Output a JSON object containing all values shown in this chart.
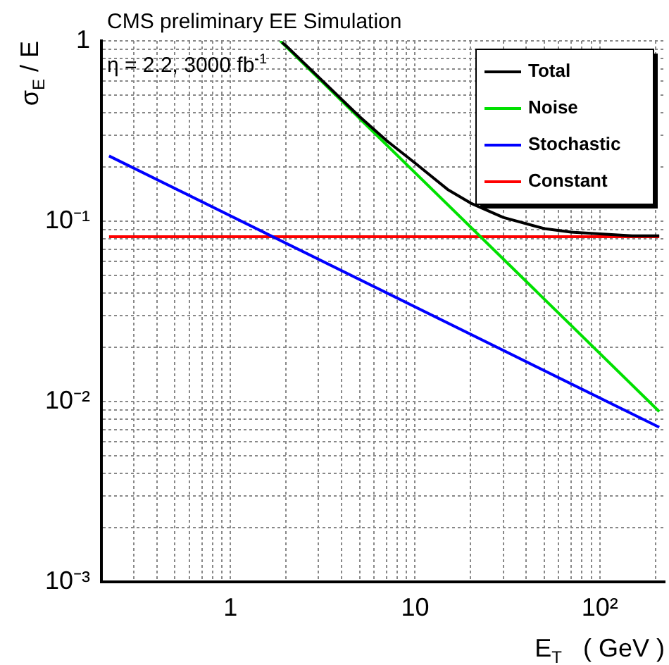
{
  "chart_data": {
    "type": "line",
    "title": "CMS preliminary EE Simulation",
    "xlabel": "E$_{T}$   ( GeV )",
    "ylabel": "σ$_{E}$ / E",
    "annotations": [
      "η = 2.2, 3000 fb$^{-1}$"
    ],
    "log": "xy",
    "grid": true,
    "legend": "top right",
    "marker": "none",
    "line_style": "solid",
    "xlim": [
      0.2,
      225
    ],
    "ylim": [
      0.001,
      1
    ],
    "xticks": [
      {
        "value": 0.3,
        "label": null
      },
      {
        "value": 0.4,
        "label": null
      },
      {
        "value": 0.5,
        "label": null
      },
      {
        "value": 0.6,
        "label": null
      },
      {
        "value": 0.7,
        "label": null
      },
      {
        "value": 0.8,
        "label": null
      },
      {
        "value": 0.9,
        "label": null
      },
      1,
      {
        "value": 2,
        "label": null
      },
      {
        "value": 3,
        "label": null
      },
      {
        "value": 4,
        "label": null
      },
      {
        "value": 5,
        "label": null
      },
      {
        "value": 6,
        "label": null
      },
      {
        "value": 7,
        "label": null
      },
      {
        "value": 8,
        "label": null
      },
      {
        "value": 9,
        "label": null
      },
      10,
      {
        "value": 20,
        "label": null
      },
      {
        "value": 30,
        "label": null
      },
      {
        "value": 40,
        "label": null
      },
      {
        "value": 50,
        "label": null
      },
      {
        "value": 60,
        "label": null
      },
      {
        "value": 70,
        "label": null
      },
      {
        "value": 80,
        "label": null
      },
      {
        "value": 90,
        "label": null
      },
      {
        "value": 100,
        "label": "10²"
      },
      {
        "value": 200,
        "label": null
      }
    ],
    "yticks": [
      {
        "value": 0.001,
        "label": "10⁻³"
      },
      {
        "value": 0.002,
        "label": null
      },
      {
        "value": 0.003,
        "label": null
      },
      {
        "value": 0.004,
        "label": null
      },
      {
        "value": 0.005,
        "label": null
      },
      {
        "value": 0.006,
        "label": null
      },
      {
        "value": 0.007,
        "label": null
      },
      {
        "value": 0.008,
        "label": null
      },
      {
        "value": 0.009,
        "label": null
      },
      {
        "value": 0.01,
        "label": "10⁻²"
      },
      {
        "value": 0.02,
        "label": null
      },
      {
        "value": 0.03,
        "label": null
      },
      {
        "value": 0.04,
        "label": null
      },
      {
        "value": 0.05,
        "label": null
      },
      {
        "value": 0.06,
        "label": null
      },
      {
        "value": 0.07,
        "label": null
      },
      {
        "value": 0.08,
        "label": null
      },
      {
        "value": 0.09,
        "label": null
      },
      {
        "value": 0.1,
        "label": "10⁻¹"
      },
      {
        "value": 0.2,
        "label": null
      },
      {
        "value": 0.3,
        "label": null
      },
      {
        "value": 0.4,
        "label": null
      },
      {
        "value": 0.5,
        "label": null
      },
      {
        "value": 0.6,
        "label": null
      },
      {
        "value": 0.7,
        "label": null
      },
      {
        "value": 0.8,
        "label": null
      },
      {
        "value": 0.9,
        "label": null
      },
      1
    ],
    "series": [
      {
        "name": "Total",
        "color": "#000000",
        "x": [
          1.9,
          2,
          3,
          5,
          7,
          10,
          15,
          20,
          30,
          50,
          70,
          100,
          150,
          210
        ],
        "values": [
          0.98,
          0.94,
          0.63,
          0.38,
          0.28,
          0.21,
          0.15,
          0.126,
          0.105,
          0.091,
          0.087,
          0.085,
          0.083,
          0.083
        ]
      },
      {
        "name": "Noise",
        "color": "#00e000",
        "x": [
          1.86,
          210
        ],
        "values": [
          1,
          0.0088
        ]
      },
      {
        "name": "Stochastic",
        "color": "#0000ff",
        "x": [
          0.22,
          210
        ],
        "values": [
          0.23,
          0.0072
        ]
      },
      {
        "name": "Constant",
        "color": "#ff0000",
        "x": [
          0.22,
          210
        ],
        "values": [
          0.082,
          0.082
        ]
      }
    ]
  }
}
